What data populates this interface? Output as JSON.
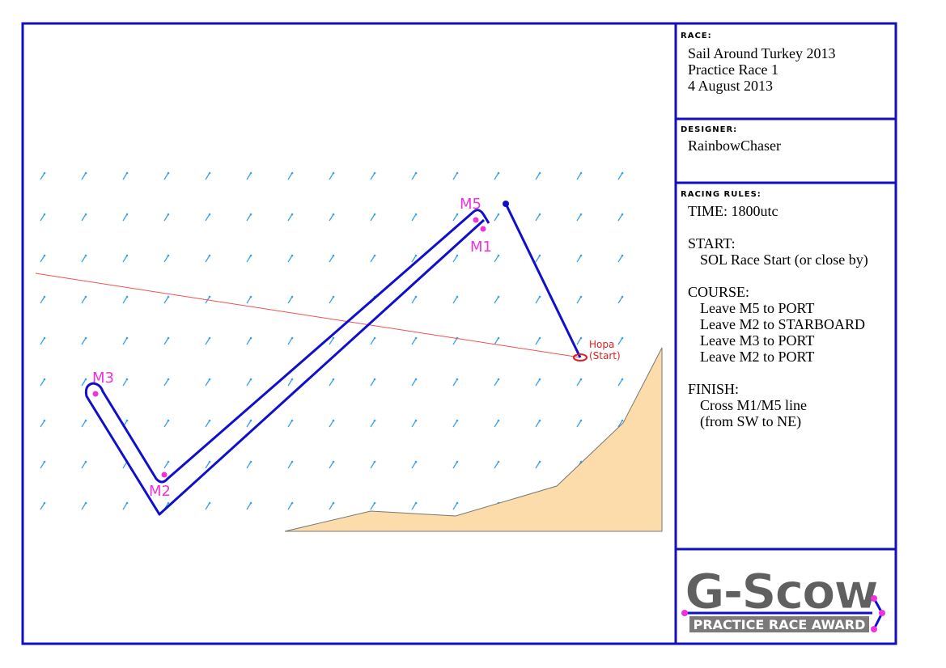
{
  "race": {
    "label": "RACE:",
    "lines": [
      "Sail Around Turkey 2013",
      "Practice Race 1",
      "4 August 2013"
    ]
  },
  "designer": {
    "label": "DESIGNER:",
    "name": "RainbowChaser"
  },
  "rules": {
    "label": "RACING RULES:",
    "lines": [
      {
        "text": "TIME: 1800utc",
        "indent": false
      },
      {
        "text": "START:",
        "indent": false
      },
      {
        "text": "SOL Race Start (or close by)",
        "indent": true
      },
      {
        "text": "COURSE:",
        "indent": false
      },
      {
        "text": "Leave M5 to PORT",
        "indent": true
      },
      {
        "text": "Leave M2 to STARBOARD",
        "indent": true
      },
      {
        "text": "Leave M3 to PORT",
        "indent": true
      },
      {
        "text": "Leave M2 to PORT",
        "indent": true
      },
      {
        "text": "FINISH:",
        "indent": false
      },
      {
        "text": "Cross M1/M5 line",
        "indent": true
      },
      {
        "text": "(from SW to NE)",
        "indent": true
      }
    ]
  },
  "map": {
    "marks": [
      "M5",
      "M1",
      "M3",
      "M2"
    ],
    "start_name": "Hopa",
    "start_note": "(Start)"
  },
  "logo": {
    "title": "G-Scow",
    "subtitle": "PRACTICE RACE AWARD"
  }
}
